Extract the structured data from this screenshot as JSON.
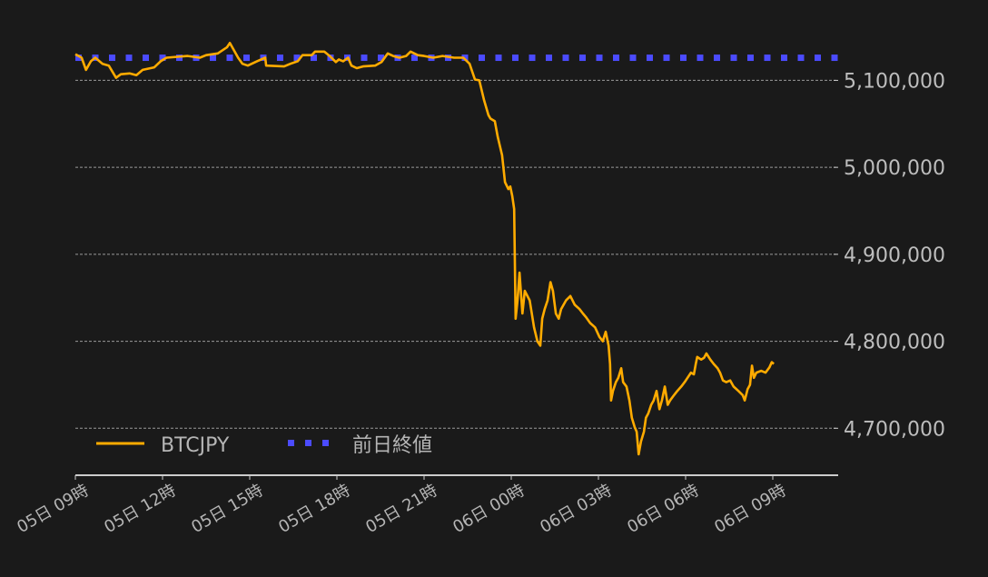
{
  "chart_data": {
    "type": "line",
    "title": "",
    "xlabel": "",
    "ylabel": "",
    "xlim": [
      "05 09:00",
      "06 11:15"
    ],
    "ylim": [
      4646000,
      5160000
    ],
    "grid": "horizontal dashed",
    "legend_position": "bottom-left",
    "x_ticks": [
      "05日 09時",
      "05日 12時",
      "05日 15時",
      "05日 18時",
      "05日 21時",
      "06日 00時",
      "06日 03時",
      "06日 06時",
      "06日 09時"
    ],
    "y_ticks": [
      4700000,
      4800000,
      4900000,
      5000000,
      5100000
    ],
    "y_tick_labels": [
      "4,700,000",
      "4,800,000",
      "4,900,000",
      "5,000,000",
      "5,100,000"
    ],
    "series": [
      {
        "name": "BTCJPY",
        "color": "#ffab00",
        "style": "solid",
        "points": [
          [
            "05 09:00",
            5130000
          ],
          [
            "05 09:13",
            5126000
          ],
          [
            "05 09:22",
            5112000
          ],
          [
            "05 09:32",
            5122000
          ],
          [
            "05 09:41",
            5126000
          ],
          [
            "05 09:56",
            5119000
          ],
          [
            "05 10:09",
            5117000
          ],
          [
            "05 10:24",
            5103000
          ],
          [
            "05 10:34",
            5107000
          ],
          [
            "05 10:52",
            5108000
          ],
          [
            "05 11:06",
            5106000
          ],
          [
            "05 11:19",
            5112000
          ],
          [
            "05 11:43",
            5115000
          ],
          [
            "05 11:56",
            5122000
          ],
          [
            "05 12:08",
            5126000
          ],
          [
            "05 12:52",
            5128000
          ],
          [
            "05 13:17",
            5126000
          ],
          [
            "05 13:30",
            5129000
          ],
          [
            "05 13:54",
            5131000
          ],
          [
            "05 14:13",
            5138000
          ],
          [
            "05 14:19",
            5143000
          ],
          [
            "05 14:26",
            5136000
          ],
          [
            "05 14:36",
            5126000
          ],
          [
            "05 14:45",
            5119000
          ],
          [
            "05 14:56",
            5117000
          ],
          [
            "05 15:15",
            5122000
          ],
          [
            "05 15:32",
            5126000
          ],
          [
            "05 15:34",
            5117000
          ],
          [
            "05 16:11",
            5116000
          ],
          [
            "05 16:24",
            5119000
          ],
          [
            "05 16:39",
            5122000
          ],
          [
            "05 16:49",
            5129000
          ],
          [
            "05 17:08",
            5129000
          ],
          [
            "05 17:15",
            5133000
          ],
          [
            "05 17:34",
            5133000
          ],
          [
            "05 17:45",
            5128000
          ],
          [
            "05 17:58",
            5121000
          ],
          [
            "05 18:04",
            5124000
          ],
          [
            "05 18:13",
            5122000
          ],
          [
            "05 18:23",
            5126000
          ],
          [
            "05 18:30",
            5117000
          ],
          [
            "05 18:41",
            5114000
          ],
          [
            "05 18:54",
            5116000
          ],
          [
            "05 19:19",
            5117000
          ],
          [
            "05 19:32",
            5121000
          ],
          [
            "05 19:45",
            5131000
          ],
          [
            "05 19:56",
            5128000
          ],
          [
            "05 20:09",
            5126000
          ],
          [
            "05 20:23",
            5128000
          ],
          [
            "05 20:32",
            5133000
          ],
          [
            "05 20:47",
            5129000
          ],
          [
            "05 21:00",
            5128000
          ],
          [
            "05 21:19",
            5126000
          ],
          [
            "05 21:38",
            5128000
          ],
          [
            "05 22:02",
            5126000
          ],
          [
            "05 22:21",
            5126000
          ],
          [
            "05 22:34",
            5119000
          ],
          [
            "05 22:45",
            5101000
          ],
          [
            "05 22:54",
            5100000
          ],
          [
            "05 23:04",
            5077000
          ],
          [
            "05 23:13",
            5060000
          ],
          [
            "05 23:17",
            5056000
          ],
          [
            "05 23:26",
            5053000
          ],
          [
            "05 23:32",
            5035000
          ],
          [
            "05 23:41",
            5014000
          ],
          [
            "05 23:47",
            4983000
          ],
          [
            "05 23:54",
            4975000
          ],
          [
            "05 23:58",
            4978000
          ],
          [
            "06 00:02",
            4967000
          ],
          [
            "06 00:06",
            4952000
          ],
          [
            "06 00:09",
            4826000
          ],
          [
            "06 00:13",
            4847000
          ],
          [
            "06 00:17",
            4879000
          ],
          [
            "06 00:23",
            4832000
          ],
          [
            "06 00:28",
            4858000
          ],
          [
            "06 00:38",
            4847000
          ],
          [
            "06 00:47",
            4816000
          ],
          [
            "06 00:54",
            4800000
          ],
          [
            "06 01:00",
            4795000
          ],
          [
            "06 01:04",
            4826000
          ],
          [
            "06 01:09",
            4837000
          ],
          [
            "06 01:15",
            4847000
          ],
          [
            "06 01:21",
            4868000
          ],
          [
            "06 01:26",
            4858000
          ],
          [
            "06 01:32",
            4832000
          ],
          [
            "06 01:38",
            4826000
          ],
          [
            "06 01:43",
            4837000
          ],
          [
            "06 01:53",
            4847000
          ],
          [
            "06 02:02",
            4852000
          ],
          [
            "06 02:11",
            4842000
          ],
          [
            "06 02:21",
            4837000
          ],
          [
            "06 02:28",
            4832000
          ],
          [
            "06 02:34",
            4828000
          ],
          [
            "06 02:43",
            4821000
          ],
          [
            "06 02:53",
            4816000
          ],
          [
            "06 03:02",
            4805000
          ],
          [
            "06 03:09",
            4800000
          ],
          [
            "06 03:15",
            4811000
          ],
          [
            "06 03:21",
            4795000
          ],
          [
            "06 03:24",
            4774000
          ],
          [
            "06 03:26",
            4732000
          ],
          [
            "06 03:30",
            4743000
          ],
          [
            "06 03:36",
            4753000
          ],
          [
            "06 03:41",
            4758000
          ],
          [
            "06 03:47",
            4769000
          ],
          [
            "06 03:51",
            4753000
          ],
          [
            "06 03:58",
            4748000
          ],
          [
            "06 04:04",
            4732000
          ],
          [
            "06 04:09",
            4712000
          ],
          [
            "06 04:15",
            4701000
          ],
          [
            "06 04:19",
            4696000
          ],
          [
            "06 04:23",
            4670000
          ],
          [
            "06 04:28",
            4685000
          ],
          [
            "06 04:34",
            4696000
          ],
          [
            "06 04:38",
            4712000
          ],
          [
            "06 04:43",
            4717000
          ],
          [
            "06 04:49",
            4727000
          ],
          [
            "06 04:54",
            4732000
          ],
          [
            "06 05:00",
            4743000
          ],
          [
            "06 05:06",
            4722000
          ],
          [
            "06 05:11",
            4732000
          ],
          [
            "06 05:17",
            4748000
          ],
          [
            "06 05:23",
            4727000
          ],
          [
            "06 05:28",
            4732000
          ],
          [
            "06 05:36",
            4738000
          ],
          [
            "06 05:43",
            4743000
          ],
          [
            "06 05:51",
            4748000
          ],
          [
            "06 05:58",
            4753000
          ],
          [
            "06 06:04",
            4758000
          ],
          [
            "06 06:11",
            4764000
          ],
          [
            "06 06:17",
            4762000
          ],
          [
            "06 06:21",
            4774000
          ],
          [
            "06 06:24",
            4782000
          ],
          [
            "06 06:32",
            4779000
          ],
          [
            "06 06:38",
            4781000
          ],
          [
            "06 06:43",
            4786000
          ],
          [
            "06 06:51",
            4779000
          ],
          [
            "06 06:58",
            4774000
          ],
          [
            "06 07:06",
            4769000
          ],
          [
            "06 07:11",
            4764000
          ],
          [
            "06 07:17",
            4755000
          ],
          [
            "06 07:24",
            4753000
          ],
          [
            "06 07:32",
            4755000
          ],
          [
            "06 07:39",
            4748000
          ],
          [
            "06 07:49",
            4743000
          ],
          [
            "06 07:58",
            4738000
          ],
          [
            "06 08:02",
            4732000
          ],
          [
            "06 08:08",
            4745000
          ],
          [
            "06 08:13",
            4750000
          ],
          [
            "06 08:17",
            4772000
          ],
          [
            "06 08:21",
            4758000
          ],
          [
            "06 08:26",
            4764000
          ],
          [
            "06 08:36",
            4766000
          ],
          [
            "06 08:45",
            4764000
          ],
          [
            "06 08:53",
            4770000
          ],
          [
            "06 08:58",
            4776000
          ],
          [
            "06 09:02",
            4774000
          ]
        ]
      },
      {
        "name": "前日終値",
        "color": "#4b4bff",
        "style": "dotted",
        "value": 5126000
      }
    ]
  }
}
